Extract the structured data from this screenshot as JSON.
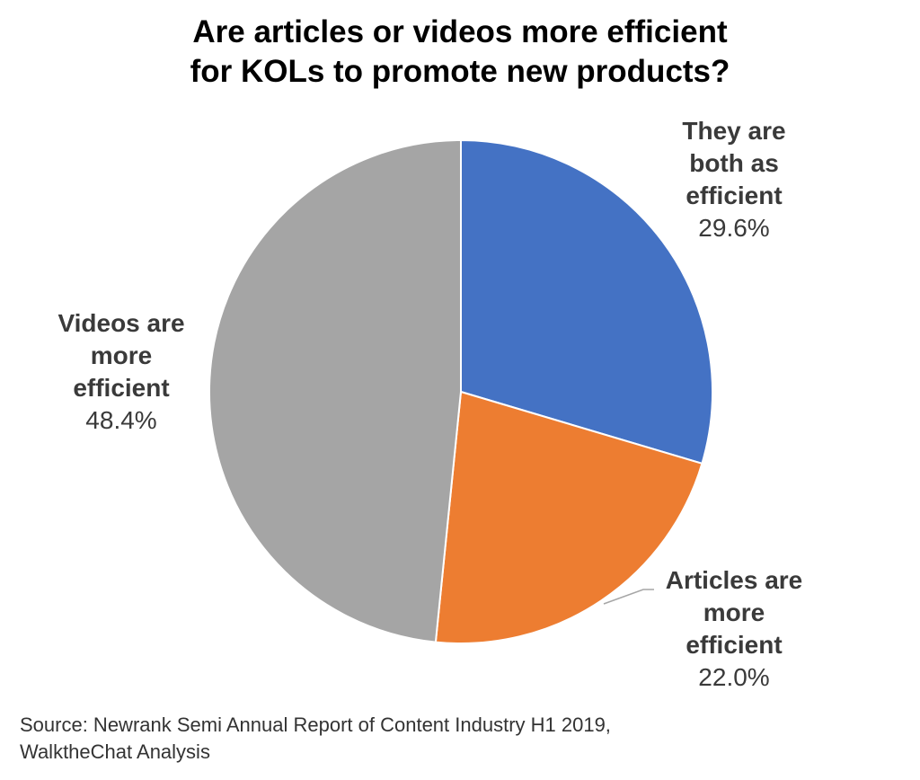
{
  "title": {
    "line1": "Are articles or videos more efficient",
    "line2": "for KOLs to promote new products?"
  },
  "chart_data": {
    "type": "pie",
    "title": "Are articles or videos more efficient for KOLs to promote new products?",
    "slices": [
      {
        "label_lines": [
          "They are",
          "both as",
          "efficient"
        ],
        "label": "They are both as efficient",
        "value": 29.6,
        "value_label": "29.6%",
        "color": "#4472C4"
      },
      {
        "label_lines": [
          "Articles are",
          "more",
          "efficient"
        ],
        "label": "Articles are more efficient",
        "value": 22.0,
        "value_label": "22.0%",
        "color": "#ED7D31"
      },
      {
        "label_lines": [
          "Videos are",
          "more",
          "efficient"
        ],
        "label": "Videos are more efficient",
        "value": 48.4,
        "value_label": "48.4%",
        "color": "#A5A5A5"
      }
    ],
    "start_angle": "12 o'clock",
    "direction": "clockwise",
    "legend": "none"
  },
  "source": {
    "line1": "Source: Newrank Semi Annual Report of Content Industry H1 2019,",
    "line2": "WalktheChat Analysis"
  }
}
